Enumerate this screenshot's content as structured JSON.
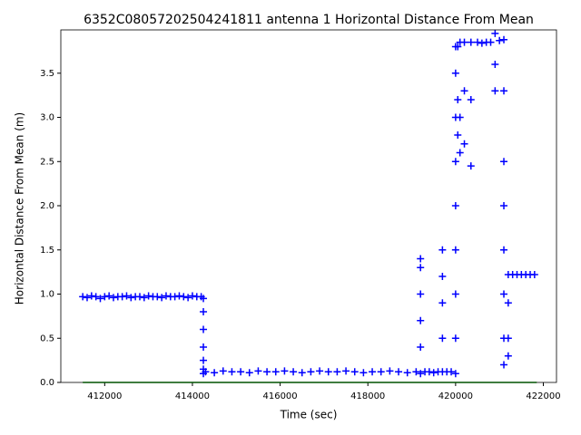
{
  "chart_data": {
    "type": "scatter",
    "title": "6352C08057202504241811 antenna 1 Horizontal Distance From Mean",
    "xlabel": "Time (sec)",
    "ylabel": "Horizontal Distance From Mean (m)",
    "xlim": [
      411000,
      422300
    ],
    "ylim": [
      0,
      3.99
    ],
    "xticks": [
      412000,
      414000,
      416000,
      418000,
      420000,
      422000
    ],
    "yticks": [
      {
        "value": 0,
        "label": "0.0"
      },
      0.5,
      {
        "value": 1,
        "label": "1.0"
      },
      1.5,
      {
        "value": 2,
        "label": "2.0"
      },
      2.5,
      {
        "value": 3,
        "label": "3.0"
      },
      3.5
    ],
    "series": [
      {
        "color": "#0000ff",
        "marker": "+",
        "x": [
          411500,
          411600,
          411700,
          411800,
          411900,
          412000,
          412100,
          412200,
          412300,
          412400,
          412500,
          412600,
          412700,
          412800,
          412900,
          413000,
          413100,
          413200,
          413300,
          413400,
          413500,
          413600,
          413700,
          413800,
          413900,
          414000,
          414100,
          414200,
          414250,
          414250,
          414250,
          414250,
          414250,
          414250,
          414250,
          414300,
          414500,
          414700,
          414900,
          415100,
          415300,
          415500,
          415700,
          415900,
          416100,
          416300,
          416500,
          416700,
          416900,
          417100,
          417300,
          417500,
          417700,
          417900,
          418100,
          418300,
          418500,
          418700,
          418900,
          419100,
          419200,
          419200,
          419200,
          419200,
          419200,
          419200,
          419300,
          419400,
          419500,
          419600,
          419700,
          419700,
          419700,
          419700,
          419700,
          419800,
          419900,
          420000,
          420000,
          420000,
          420000,
          420000,
          420000,
          420000,
          420000,
          420000,
          420050,
          420050,
          420050,
          420100,
          420100,
          420100,
          420200,
          420200,
          420200,
          420350,
          420350,
          420350,
          420500,
          420600,
          420700,
          420800,
          420900,
          420900,
          420900,
          421000,
          421100,
          421100,
          421100,
          421100,
          421100,
          421100,
          421100,
          421100,
          421200,
          421200,
          421200,
          421200,
          421300,
          421400,
          421500,
          421600,
          421700,
          421800
        ],
        "values": [
          0.97,
          0.96,
          0.98,
          0.97,
          0.95,
          0.97,
          0.98,
          0.96,
          0.97,
          0.97,
          0.98,
          0.96,
          0.97,
          0.97,
          0.96,
          0.98,
          0.97,
          0.97,
          0.96,
          0.98,
          0.97,
          0.97,
          0.98,
          0.97,
          0.96,
          0.98,
          0.97,
          0.97,
          0.95,
          0.8,
          0.6,
          0.4,
          0.25,
          0.15,
          0.1,
          0.12,
          0.11,
          0.13,
          0.12,
          0.12,
          0.11,
          0.13,
          0.12,
          0.12,
          0.13,
          0.12,
          0.11,
          0.12,
          0.13,
          0.12,
          0.12,
          0.13,
          0.12,
          0.11,
          0.12,
          0.12,
          0.13,
          0.12,
          0.11,
          0.12,
          0.1,
          0.4,
          0.7,
          1.0,
          1.3,
          1.4,
          0.12,
          0.12,
          0.11,
          0.12,
          0.12,
          0.5,
          0.9,
          1.2,
          1.5,
          0.12,
          0.12,
          0.1,
          0.5,
          1.0,
          1.5,
          2.0,
          2.5,
          3.0,
          3.5,
          3.8,
          3.8,
          3.2,
          2.8,
          3.85,
          3.0,
          2.6,
          3.85,
          3.3,
          2.7,
          3.85,
          3.2,
          2.45,
          3.85,
          3.84,
          3.85,
          3.85,
          3.95,
          3.6,
          3.3,
          3.87,
          3.88,
          3.3,
          2.5,
          2.0,
          1.5,
          1.0,
          0.5,
          0.2,
          1.22,
          0.9,
          0.5,
          0.3,
          1.22,
          1.22,
          1.22,
          1.22,
          1.22,
          1.22
        ]
      },
      {
        "color": "#00b000",
        "marker": "line",
        "x": [
          411500,
          421850
        ],
        "values": [
          0,
          0
        ]
      }
    ]
  }
}
